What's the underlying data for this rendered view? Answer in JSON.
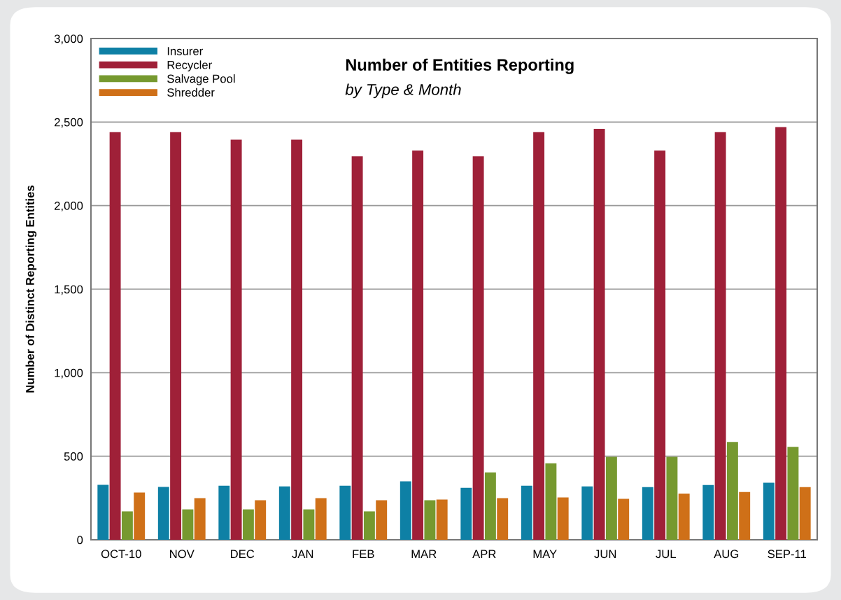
{
  "chart_data": {
    "type": "bar",
    "title": "Number of Entities Reporting",
    "subtitle": "by Type & Month",
    "ylabel": "Number of Distinct Reporting Entities",
    "categories": [
      "OCT-10",
      "NOV",
      "DEC",
      "JAN",
      "FEB",
      "MAR",
      "APR",
      "MAY",
      "JUN",
      "JUL",
      "AUG",
      "SEP-11"
    ],
    "series": [
      {
        "name": "Insurer",
        "color": "#0e80a5",
        "values": [
          329,
          316,
          324,
          320,
          324,
          350,
          311,
          324,
          320,
          315,
          328,
          341
        ]
      },
      {
        "name": "Recycler",
        "color": "#9f2038",
        "values": [
          2440,
          2440,
          2395,
          2395,
          2295,
          2330,
          2295,
          2440,
          2460,
          2330,
          2440,
          2470
        ]
      },
      {
        "name": "Salvage Pool",
        "color": "#76992f",
        "values": [
          170,
          182,
          182,
          182,
          170,
          237,
          403,
          458,
          496,
          496,
          586,
          556
        ]
      },
      {
        "name": "Shredder",
        "color": "#cf7018",
        "values": [
          283,
          249,
          237,
          249,
          237,
          241,
          249,
          254,
          245,
          277,
          286,
          315
        ]
      }
    ],
    "ylim": [
      0,
      3000
    ],
    "yticks": [
      0,
      500,
      {
        "value": 1000,
        "label": "1,000"
      },
      {
        "value": 1500,
        "label": "1,500"
      },
      {
        "value": 2000,
        "label": "2,000"
      },
      {
        "value": 2500,
        "label": "2,500"
      },
      {
        "value": 3000,
        "label": "3,000"
      }
    ],
    "grid": "y",
    "legend": "top left"
  }
}
